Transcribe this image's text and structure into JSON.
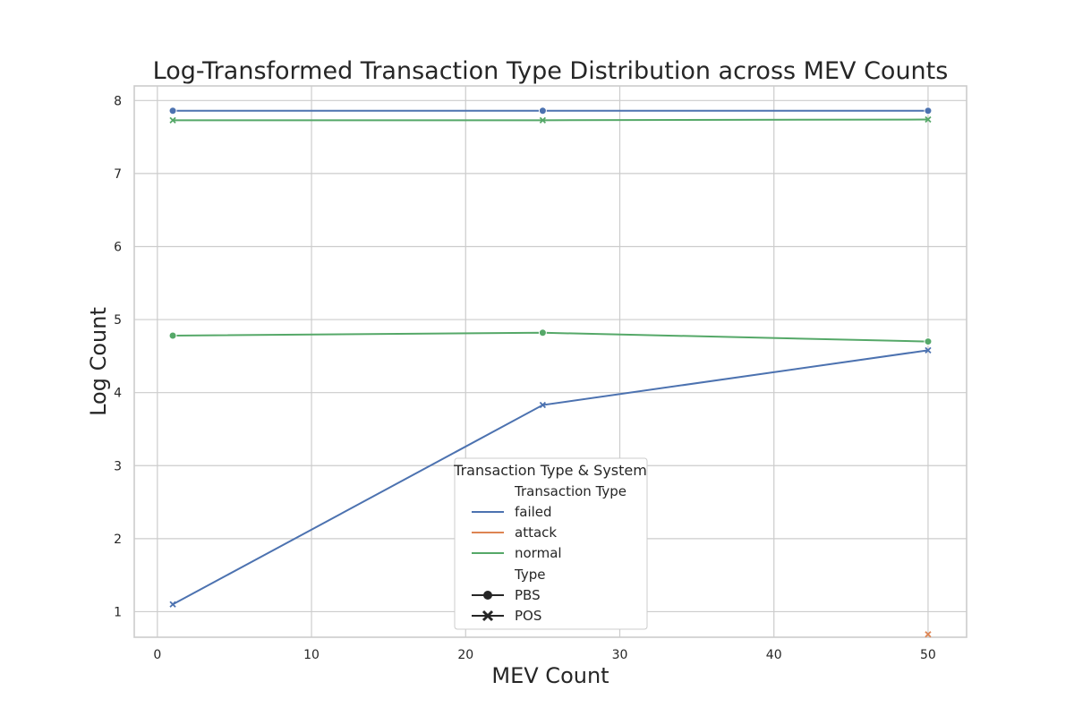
{
  "chart_data": {
    "type": "line",
    "title": "Log-Transformed Transaction Type Distribution across MEV Counts",
    "xlabel": "MEV Count",
    "ylabel": "Log Count",
    "xlim": [
      -1.5,
      52.5
    ],
    "ylim": [
      0.65,
      8.2
    ],
    "xticks": [
      0,
      10,
      20,
      30,
      40,
      50
    ],
    "yticks": [
      1,
      2,
      3,
      4,
      5,
      6,
      7,
      8
    ],
    "grid": true,
    "legend": {
      "title": "Transaction Type & System",
      "placement": "lower-center",
      "hue_title": "Transaction Type",
      "hue_entries": [
        {
          "label": "failed",
          "color": "#4c72b0"
        },
        {
          "label": "attack",
          "color": "#dd8452"
        },
        {
          "label": "normal",
          "color": "#55a868"
        }
      ],
      "style_title": "Type",
      "style_entries": [
        {
          "label": "PBS",
          "marker": "circle"
        },
        {
          "label": "POS",
          "marker": "x"
        }
      ]
    },
    "series": [
      {
        "transaction_type": "failed",
        "system": "PBS",
        "color": "#4c72b0",
        "marker": "circle",
        "x": [
          1,
          25,
          50
        ],
        "y": [
          7.86,
          7.86,
          7.86
        ]
      },
      {
        "transaction_type": "normal",
        "system": "POS",
        "color": "#55a868",
        "marker": "x",
        "x": [
          1,
          25,
          50
        ],
        "y": [
          7.73,
          7.73,
          7.74
        ]
      },
      {
        "transaction_type": "normal",
        "system": "PBS",
        "color": "#55a868",
        "marker": "circle",
        "x": [
          1,
          25,
          50
        ],
        "y": [
          4.78,
          4.82,
          4.7
        ]
      },
      {
        "transaction_type": "failed",
        "system": "POS",
        "color": "#4c72b0",
        "marker": "x",
        "x": [
          1,
          25,
          50
        ],
        "y": [
          1.1,
          3.83,
          4.58
        ]
      },
      {
        "transaction_type": "attack",
        "system": "POS",
        "color": "#dd8452",
        "marker": "x",
        "x": [
          50
        ],
        "y": [
          0.69
        ]
      }
    ]
  }
}
